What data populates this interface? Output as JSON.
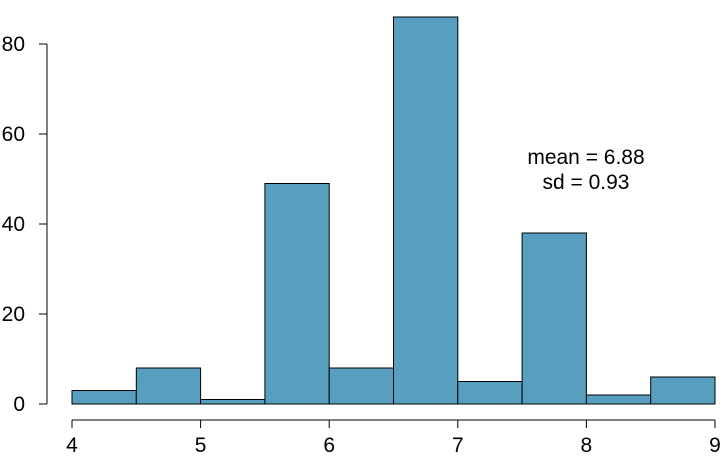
{
  "chart_data": {
    "type": "bar",
    "subtype": "histogram",
    "bins": [
      {
        "start": 4.0,
        "end": 4.5,
        "count": 3
      },
      {
        "start": 4.5,
        "end": 5.0,
        "count": 8
      },
      {
        "start": 5.0,
        "end": 5.5,
        "count": 1
      },
      {
        "start": 5.5,
        "end": 6.0,
        "count": 49
      },
      {
        "start": 6.0,
        "end": 6.5,
        "count": 8
      },
      {
        "start": 6.5,
        "end": 7.0,
        "count": 86
      },
      {
        "start": 7.0,
        "end": 7.5,
        "count": 5
      },
      {
        "start": 7.5,
        "end": 8.0,
        "count": 38
      },
      {
        "start": 8.0,
        "end": 8.5,
        "count": 2
      },
      {
        "start": 8.5,
        "end": 9.0,
        "count": 6
      }
    ],
    "xlim": [
      4,
      9
    ],
    "ylim": [
      0,
      86
    ],
    "x_ticks": [
      4,
      5,
      6,
      7,
      8,
      9
    ],
    "y_ticks": [
      0,
      20,
      40,
      60,
      80
    ],
    "x_tick_labels": [
      "4",
      "5",
      "6",
      "7",
      "8",
      "9"
    ],
    "y_tick_labels": [
      "0",
      "20",
      "40",
      "60",
      "80"
    ],
    "title": "",
    "xlabel": "",
    "ylabel": "",
    "grid": false,
    "bar_color": "#579fbf",
    "annotations": {
      "mean": "mean =  6.88",
      "sd": "sd =  0.93"
    }
  }
}
